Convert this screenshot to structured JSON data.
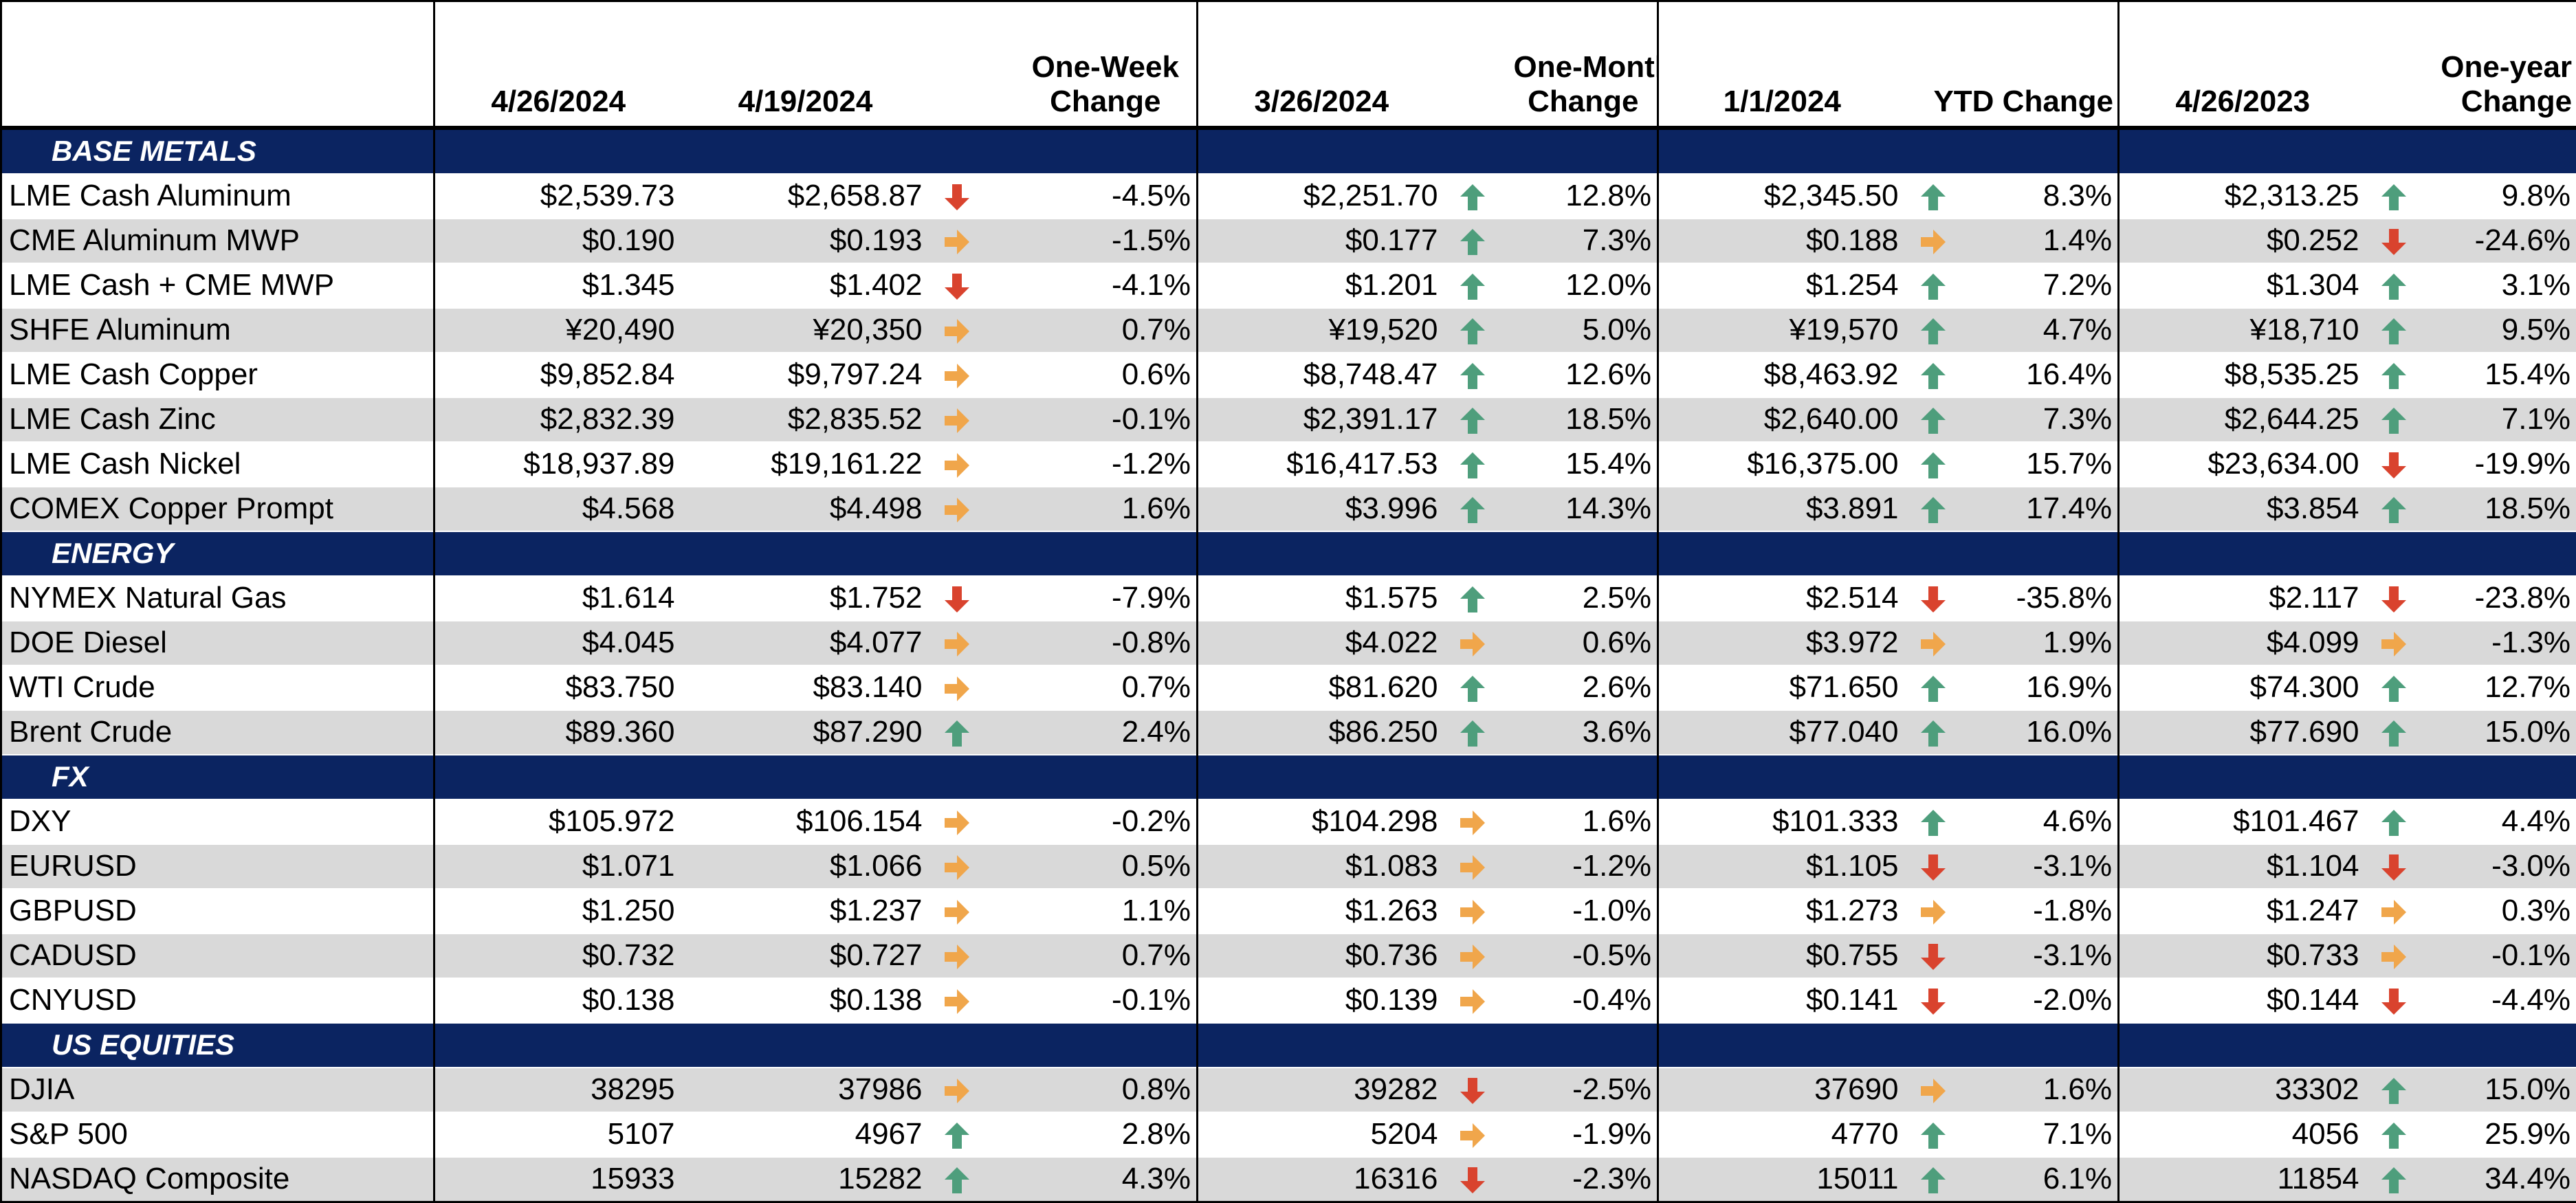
{
  "header": {
    "col_d1": "4/26/2024",
    "col_d2": "4/19/2024",
    "col_c1": [
      "One-Week",
      "Change"
    ],
    "col_d3": "3/26/2024",
    "col_c2": [
      "One-Month",
      "Change"
    ],
    "col_d4": "1/1/2024",
    "col_c3": "YTD Change",
    "col_d5": "4/26/2023",
    "col_c4": [
      "One-year",
      "Change"
    ]
  },
  "arrow_colors": {
    "up": "#4e9e7c",
    "down": "#d9432e",
    "flat": "#f0a64b"
  },
  "sections": [
    {
      "title": "BASE METALS",
      "rows": [
        {
          "name": "LME Cash Aluminum",
          "d1": "$2,539.73",
          "d2": "$2,658.87",
          "a1": "down",
          "c1": "-4.5%",
          "d3": "$2,251.70",
          "a2": "up",
          "c2": "12.8%",
          "d4": "$2,345.50",
          "a3": "up",
          "c3": "8.3%",
          "d5": "$2,313.25",
          "a4": "up",
          "c4": "9.8%"
        },
        {
          "name": "CME Aluminum MWP",
          "d1": "$0.190",
          "d2": "$0.193",
          "a1": "flat",
          "c1": "-1.5%",
          "d3": "$0.177",
          "a2": "up",
          "c2": "7.3%",
          "d4": "$0.188",
          "a3": "flat",
          "c3": "1.4%",
          "d5": "$0.252",
          "a4": "down",
          "c4": "-24.6%"
        },
        {
          "name": "LME Cash + CME MWP",
          "d1": "$1.345",
          "d2": "$1.402",
          "a1": "down",
          "c1": "-4.1%",
          "d3": "$1.201",
          "a2": "up",
          "c2": "12.0%",
          "d4": "$1.254",
          "a3": "up",
          "c3": "7.2%",
          "d5": "$1.304",
          "a4": "up",
          "c4": "3.1%"
        },
        {
          "name": "SHFE Aluminum",
          "d1": "¥20,490",
          "d2": "¥20,350",
          "a1": "flat",
          "c1": "0.7%",
          "d3": "¥19,520",
          "a2": "up",
          "c2": "5.0%",
          "d4": "¥19,570",
          "a3": "up",
          "c3": "4.7%",
          "d5": "¥18,710",
          "a4": "up",
          "c4": "9.5%"
        },
        {
          "name": "LME Cash Copper",
          "d1": "$9,852.84",
          "d2": "$9,797.24",
          "a1": "flat",
          "c1": "0.6%",
          "d3": "$8,748.47",
          "a2": "up",
          "c2": "12.6%",
          "d4": "$8,463.92",
          "a3": "up",
          "c3": "16.4%",
          "d5": "$8,535.25",
          "a4": "up",
          "c4": "15.4%"
        },
        {
          "name": "LME Cash Zinc",
          "d1": "$2,832.39",
          "d2": "$2,835.52",
          "a1": "flat",
          "c1": "-0.1%",
          "d3": "$2,391.17",
          "a2": "up",
          "c2": "18.5%",
          "d4": "$2,640.00",
          "a3": "up",
          "c3": "7.3%",
          "d5": "$2,644.25",
          "a4": "up",
          "c4": "7.1%"
        },
        {
          "name": "LME Cash Nickel",
          "d1": "$18,937.89",
          "d2": "$19,161.22",
          "a1": "flat",
          "c1": "-1.2%",
          "d3": "$16,417.53",
          "a2": "up",
          "c2": "15.4%",
          "d4": "$16,375.00",
          "a3": "up",
          "c3": "15.7%",
          "d5": "$23,634.00",
          "a4": "down",
          "c4": "-19.9%"
        },
        {
          "name": "COMEX Copper Prompt",
          "d1": "$4.568",
          "d2": "$4.498",
          "a1": "flat",
          "c1": "1.6%",
          "d3": "$3.996",
          "a2": "up",
          "c2": "14.3%",
          "d4": "$3.891",
          "a3": "up",
          "c3": "17.4%",
          "d5": "$3.854",
          "a4": "up",
          "c4": "18.5%"
        }
      ]
    },
    {
      "title": "ENERGY",
      "rows": [
        {
          "name": "NYMEX Natural Gas",
          "d1": "$1.614",
          "d2": "$1.752",
          "a1": "down",
          "c1": "-7.9%",
          "d3": "$1.575",
          "a2": "up",
          "c2": "2.5%",
          "d4": "$2.514",
          "a3": "down",
          "c3": "-35.8%",
          "d5": "$2.117",
          "a4": "down",
          "c4": "-23.8%"
        },
        {
          "name": "DOE Diesel",
          "d1": "$4.045",
          "d2": "$4.077",
          "a1": "flat",
          "c1": "-0.8%",
          "d3": "$4.022",
          "a2": "flat",
          "c2": "0.6%",
          "d4": "$3.972",
          "a3": "flat",
          "c3": "1.9%",
          "d5": "$4.099",
          "a4": "flat",
          "c4": "-1.3%"
        },
        {
          "name": "WTI Crude",
          "d1": "$83.750",
          "d2": "$83.140",
          "a1": "flat",
          "c1": "0.7%",
          "d3": "$81.620",
          "a2": "up",
          "c2": "2.6%",
          "d4": "$71.650",
          "a3": "up",
          "c3": "16.9%",
          "d5": "$74.300",
          "a4": "up",
          "c4": "12.7%"
        },
        {
          "name": "Brent Crude",
          "d1": "$89.360",
          "d2": "$87.290",
          "a1": "up",
          "c1": "2.4%",
          "d3": "$86.250",
          "a2": "up",
          "c2": "3.6%",
          "d4": "$77.040",
          "a3": "up",
          "c3": "16.0%",
          "d5": "$77.690",
          "a4": "up",
          "c4": "15.0%"
        }
      ]
    },
    {
      "title": "FX",
      "rows": [
        {
          "name": "DXY",
          "d1": "$105.972",
          "d2": "$106.154",
          "a1": "flat",
          "c1": "-0.2%",
          "d3": "$104.298",
          "a2": "flat",
          "c2": "1.6%",
          "d4": "$101.333",
          "a3": "up",
          "c3": "4.6%",
          "d5": "$101.467",
          "a4": "up",
          "c4": "4.4%"
        },
        {
          "name": "EURUSD",
          "d1": "$1.071",
          "d2": "$1.066",
          "a1": "flat",
          "c1": "0.5%",
          "d3": "$1.083",
          "a2": "flat",
          "c2": "-1.2%",
          "d4": "$1.105",
          "a3": "down",
          "c3": "-3.1%",
          "d5": "$1.104",
          "a4": "down",
          "c4": "-3.0%"
        },
        {
          "name": "GBPUSD",
          "d1": "$1.250",
          "d2": "$1.237",
          "a1": "flat",
          "c1": "1.1%",
          "d3": "$1.263",
          "a2": "flat",
          "c2": "-1.0%",
          "d4": "$1.273",
          "a3": "flat",
          "c3": "-1.8%",
          "d5": "$1.247",
          "a4": "flat",
          "c4": "0.3%"
        },
        {
          "name": "CADUSD",
          "d1": "$0.732",
          "d2": "$0.727",
          "a1": "flat",
          "c1": "0.7%",
          "d3": "$0.736",
          "a2": "flat",
          "c2": "-0.5%",
          "d4": "$0.755",
          "a3": "down",
          "c3": "-3.1%",
          "d5": "$0.733",
          "a4": "flat",
          "c4": "-0.1%"
        },
        {
          "name": "CNYUSD",
          "d1": "$0.138",
          "d2": "$0.138",
          "a1": "flat",
          "c1": "-0.1%",
          "d3": "$0.139",
          "a2": "flat",
          "c2": "-0.4%",
          "d4": "$0.141",
          "a3": "down",
          "c3": "-2.0%",
          "d5": "$0.144",
          "a4": "down",
          "c4": "-4.4%"
        }
      ]
    },
    {
      "title": "US EQUITIES",
      "rows": [
        {
          "name": "DJIA",
          "d1": "38295",
          "d2": "37986",
          "a1": "flat",
          "c1": "0.8%",
          "d3": "39282",
          "a2": "down",
          "c2": "-2.5%",
          "d4": "37690",
          "a3": "flat",
          "c3": "1.6%",
          "d5": "33302",
          "a4": "up",
          "c4": "15.0%"
        },
        {
          "name": "S&P 500",
          "d1": "5107",
          "d2": "4967",
          "a1": "up",
          "c1": "2.8%",
          "d3": "5204",
          "a2": "flat",
          "c2": "-1.9%",
          "d4": "4770",
          "a3": "up",
          "c3": "7.1%",
          "d5": "4056",
          "a4": "up",
          "c4": "25.9%"
        },
        {
          "name": "NASDAQ Composite",
          "d1": "15933",
          "d2": "15282",
          "a1": "up",
          "c1": "4.3%",
          "d3": "16316",
          "a2": "down",
          "c2": "-2.3%",
          "d4": "15011",
          "a3": "up",
          "c3": "6.1%",
          "d5": "11854",
          "a4": "up",
          "c4": "34.4%"
        }
      ]
    }
  ]
}
